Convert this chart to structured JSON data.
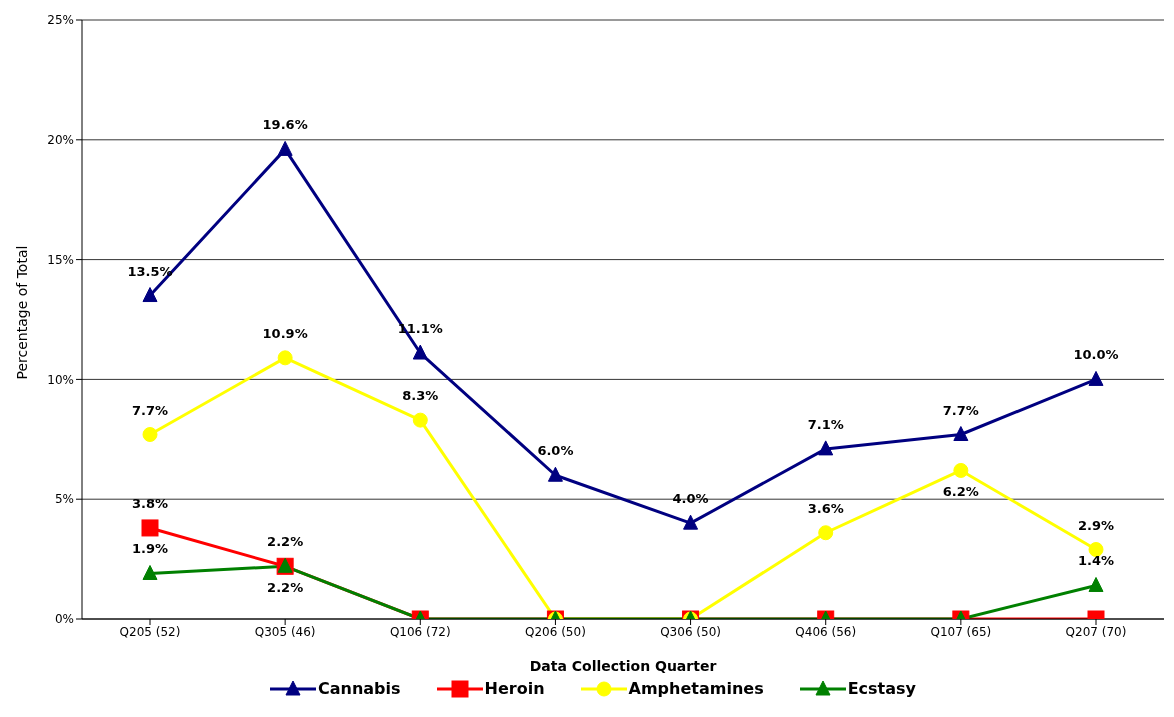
{
  "chart_data": {
    "type": "line",
    "xlabel": "Data Collection Quarter",
    "ylabel": "Percentage of Total",
    "categories": [
      "Q205 (52)",
      "Q305 (46)",
      "Q106 (72)",
      "Q206 (50)",
      "Q306 (50)",
      "Q406 (56)",
      "Q107 (65)",
      "Q207 (70)"
    ],
    "ylim": [
      0,
      25
    ],
    "yticks": [
      {
        "value": 0,
        "label": "0%"
      },
      {
        "value": 5,
        "label": "5%"
      },
      {
        "value": 10,
        "label": "10%"
      },
      {
        "value": 15,
        "label": "15%"
      },
      {
        "value": 20,
        "label": "20%"
      },
      {
        "value": 25,
        "label": "25%"
      }
    ],
    "grid": "y",
    "legend": "bottom",
    "line_style": "solid",
    "series": [
      {
        "name": "Cannabis",
        "color": "#000080",
        "marker": "triangle",
        "values": [
          13.5,
          19.6,
          11.1,
          6.0,
          4.0,
          7.1,
          7.7,
          10.0
        ],
        "value_labels": [
          "13.5%",
          "19.6%",
          "11.1%",
          "6.0%",
          "4.0%",
          "7.1%",
          "7.7%",
          "10.0%"
        ]
      },
      {
        "name": "Heroin",
        "color": "#ff0000",
        "marker": "square",
        "values": [
          3.8,
          2.2,
          0,
          0,
          0,
          0,
          0,
          0
        ],
        "value_labels": [
          "3.8%",
          "2.2%",
          null,
          null,
          null,
          null,
          null,
          null
        ]
      },
      {
        "name": "Amphetamines",
        "color": "#ffff00",
        "marker": "circle",
        "values": [
          7.7,
          10.9,
          8.3,
          0,
          0,
          3.6,
          6.2,
          2.9
        ],
        "value_labels": [
          "7.7%",
          "10.9%",
          "8.3%",
          null,
          null,
          "3.6%",
          "6.2%",
          "2.9%"
        ]
      },
      {
        "name": "Ecstasy",
        "color": "#008000",
        "marker": "triangle",
        "values": [
          1.9,
          2.2,
          0,
          0,
          0,
          0,
          0,
          1.4
        ],
        "value_labels": [
          "1.9%",
          "2.2%",
          null,
          null,
          null,
          null,
          null,
          "1.4%"
        ]
      }
    ]
  }
}
